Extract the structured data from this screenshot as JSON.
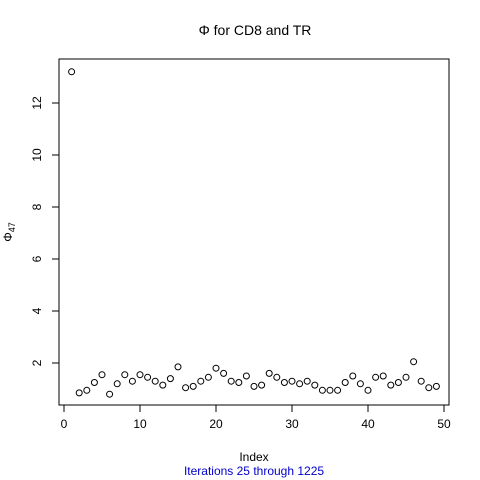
{
  "chart_data": {
    "type": "scatter",
    "title": "Φ  for  CD8  and  TR",
    "xlabel": "Index",
    "ylabel_symbol": "Φ",
    "ylabel_subscript": "47",
    "subtitle": "Iterations 25 through 1225",
    "subtitle_color": "#0000cc",
    "xlim": [
      0,
      50
    ],
    "ylim": [
      0.8,
      13.2
    ],
    "x_ticks": [
      0,
      10,
      20,
      30,
      40,
      50
    ],
    "y_ticks": [
      2,
      4,
      6,
      8,
      10,
      12
    ],
    "marker": "open-circle",
    "grid": false,
    "legend": "none",
    "x": [
      1,
      2,
      3,
      4,
      5,
      6,
      7,
      8,
      9,
      10,
      11,
      12,
      13,
      14,
      15,
      16,
      17,
      18,
      19,
      20,
      21,
      22,
      23,
      24,
      25,
      26,
      27,
      28,
      29,
      30,
      31,
      32,
      33,
      34,
      35,
      36,
      37,
      38,
      39,
      40,
      41,
      42,
      43,
      44,
      45,
      46,
      47,
      48,
      49
    ],
    "y": [
      13.2,
      0.85,
      0.95,
      1.25,
      1.55,
      0.8,
      1.2,
      1.55,
      1.3,
      1.55,
      1.45,
      1.3,
      1.15,
      1.4,
      1.85,
      1.05,
      1.1,
      1.3,
      1.45,
      1.8,
      1.6,
      1.3,
      1.25,
      1.5,
      1.1,
      1.15,
      1.6,
      1.45,
      1.25,
      1.3,
      1.2,
      1.3,
      1.15,
      0.95,
      0.95,
      0.95,
      1.25,
      1.5,
      1.2,
      0.95,
      1.45,
      1.5,
      1.15,
      1.25,
      1.45,
      2.05,
      1.3,
      1.05,
      1.1
    ]
  }
}
